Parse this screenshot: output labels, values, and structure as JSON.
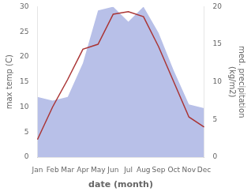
{
  "chart_data": {
    "type": "line",
    "categories": [
      "Jan",
      "Feb",
      "Mar",
      "Apr",
      "May",
      "Jun",
      "Jul",
      "Aug",
      "Sep",
      "Oct",
      "Nov",
      "Dec"
    ],
    "series": [
      {
        "type": "area",
        "color": "#b8c0e8",
        "axis": "y2",
        "values": [
          8.0,
          7.5,
          8.0,
          12.5,
          19.5,
          20.0,
          18.0,
          20.0,
          16.5,
          11.5,
          7.0,
          6.5
        ]
      },
      {
        "type": "line",
        "color": "#aa3535",
        "values": [
          3.5,
          10.0,
          15.5,
          21.5,
          22.5,
          28.5,
          29.0,
          28.0,
          22.0,
          15.0,
          8.0,
          6.0
        ]
      }
    ],
    "xlabel": "date (month)",
    "ylabel": "max temp (C)",
    "y2label": "med. precipitation\n(kg/m2)",
    "ylim": [
      0,
      30
    ],
    "yticks": [
      0,
      5,
      10,
      15,
      20,
      25,
      30
    ],
    "y2lim": [
      0,
      20
    ],
    "y2ticks": [
      0,
      5,
      10,
      15,
      20
    ],
    "grid": false
  }
}
